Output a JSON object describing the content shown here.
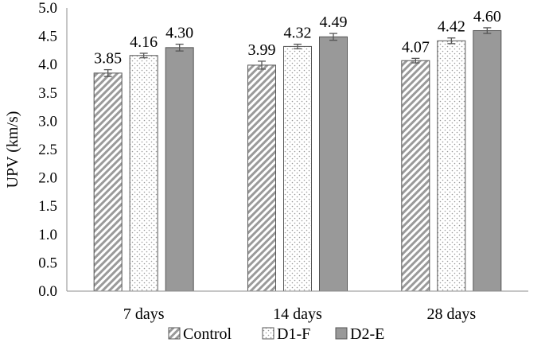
{
  "chart_data": {
    "type": "bar",
    "title": "",
    "xlabel": "",
    "ylabel": "UPV (km/s)",
    "ylim": [
      0.0,
      5.0
    ],
    "yticks": [
      "0.0",
      "0.5",
      "1.0",
      "1.5",
      "2.0",
      "2.5",
      "3.0",
      "3.5",
      "4.0",
      "4.5",
      "5.0"
    ],
    "ytick_values": [
      0.0,
      0.5,
      1.0,
      1.5,
      2.0,
      2.5,
      3.0,
      3.5,
      4.0,
      4.5,
      5.0
    ],
    "grid": false,
    "legend_position": "bottom",
    "categories": [
      "7 days",
      "14 days",
      "28 days"
    ],
    "series": [
      {
        "name": "Control",
        "values": [
          3.85,
          3.99,
          4.07
        ],
        "labels": [
          "3.85",
          "3.99",
          "4.07"
        ],
        "errors": [
          0.06,
          0.07,
          0.04
        ],
        "pattern": "diagonal-hatch",
        "color": "#8c8c8c"
      },
      {
        "name": "D1-F",
        "values": [
          4.16,
          4.32,
          4.42
        ],
        "labels": [
          "4.16",
          "4.32",
          "4.42"
        ],
        "errors": [
          0.04,
          0.04,
          0.05
        ],
        "pattern": "dots",
        "color": "#9a9a9a"
      },
      {
        "name": "D2-E",
        "values": [
          4.3,
          4.49,
          4.6
        ],
        "labels": [
          "4.30",
          "4.49",
          "4.60"
        ],
        "errors": [
          0.06,
          0.06,
          0.05
        ],
        "pattern": "solid",
        "color": "#999999"
      }
    ]
  }
}
